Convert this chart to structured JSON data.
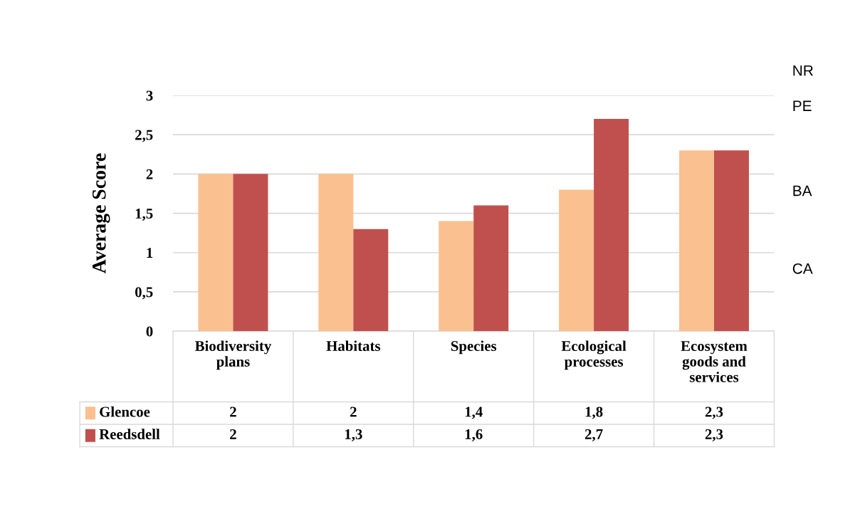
{
  "chart_data": {
    "type": "bar",
    "ylabel": "Average Score",
    "categories": [
      "Biodiversity plans",
      "Habitats",
      "Species",
      "Ecological processes",
      "Ecosystem goods and services"
    ],
    "series": [
      {
        "name": "Glencoe",
        "color": "#fac090",
        "values": [
          2,
          2,
          1.4,
          1.8,
          2.3
        ],
        "value_labels": [
          "2",
          "2",
          "1,4",
          "1,8",
          "2,3"
        ]
      },
      {
        "name": "Reedsdell",
        "color": "#c0504d",
        "values": [
          2,
          1.3,
          1.6,
          2.7,
          2.3
        ],
        "value_labels": [
          "2",
          "1,3",
          "1,6",
          "2,7",
          "2,3"
        ]
      }
    ],
    "ylim": [
      0,
      3
    ],
    "yticks": [
      0,
      {
        "value": 0.5,
        "label": "0,5"
      },
      1,
      {
        "value": 1.5,
        "label": "1,5"
      },
      2,
      {
        "value": 2.5,
        "label": "2,5"
      },
      3
    ],
    "grid": "y",
    "legend": "bottom left",
    "annotations": [
      "NR",
      "PE",
      "BA",
      "CA"
    ]
  }
}
